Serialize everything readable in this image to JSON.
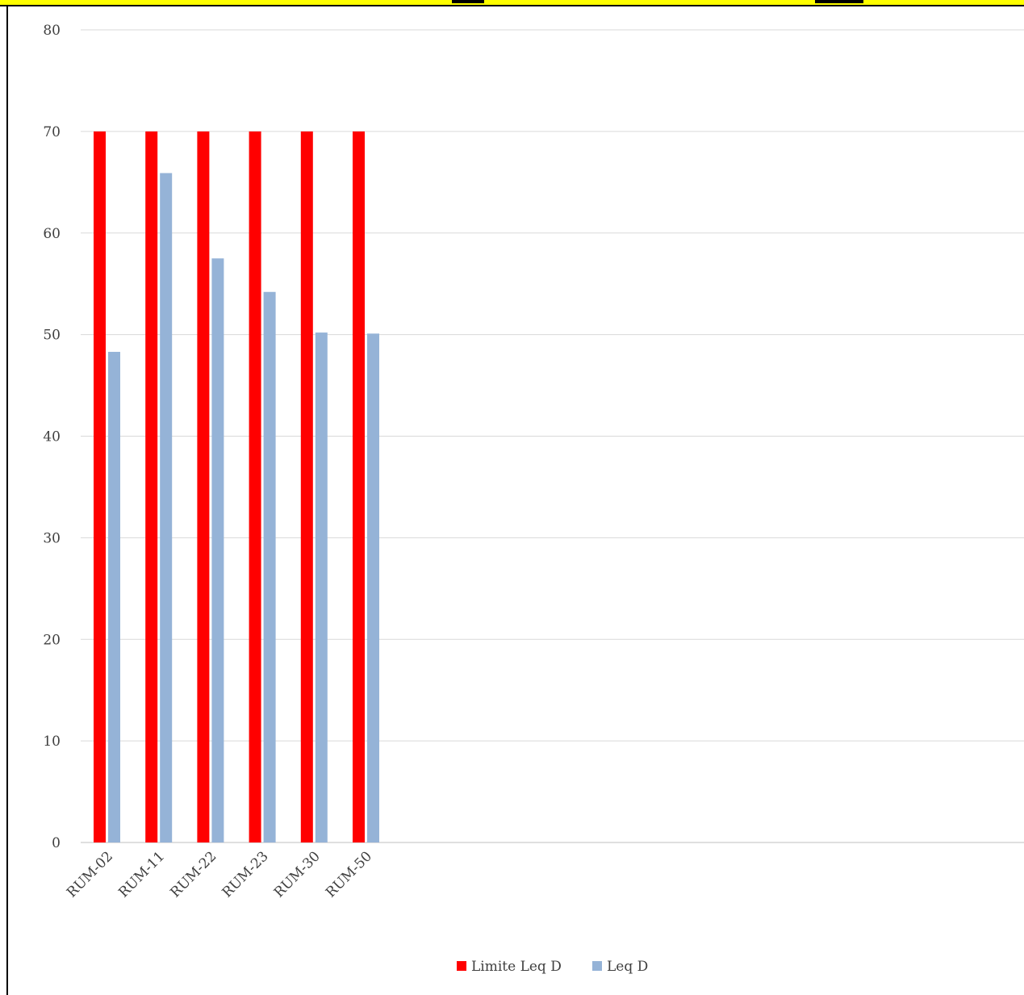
{
  "chart_data": {
    "type": "bar",
    "categories": [
      "RUM-02",
      "RUM-11",
      "RUM-22",
      "RUM-23",
      "RUM-30",
      "RUM-50"
    ],
    "series": [
      {
        "name": "Limite Leq D",
        "color": "#ff0000",
        "values": [
          70,
          70,
          70,
          70,
          70,
          70
        ]
      },
      {
        "name": "Leq D",
        "color": "#95b3d7",
        "values": [
          48.3,
          65.9,
          57.5,
          54.2,
          50.2,
          50.1
        ]
      }
    ],
    "y_ticks": [
      "0",
      "10",
      "20",
      "30",
      "40",
      "50",
      "60",
      "70",
      "80"
    ],
    "ylim": [
      0,
      80
    ],
    "grid": true,
    "legend_position": "bottom",
    "title": "",
    "xlabel": "",
    "ylabel": ""
  },
  "colors": {
    "banner": "#ffff00",
    "gridline": "#d9d9d9",
    "text": "#404040"
  }
}
